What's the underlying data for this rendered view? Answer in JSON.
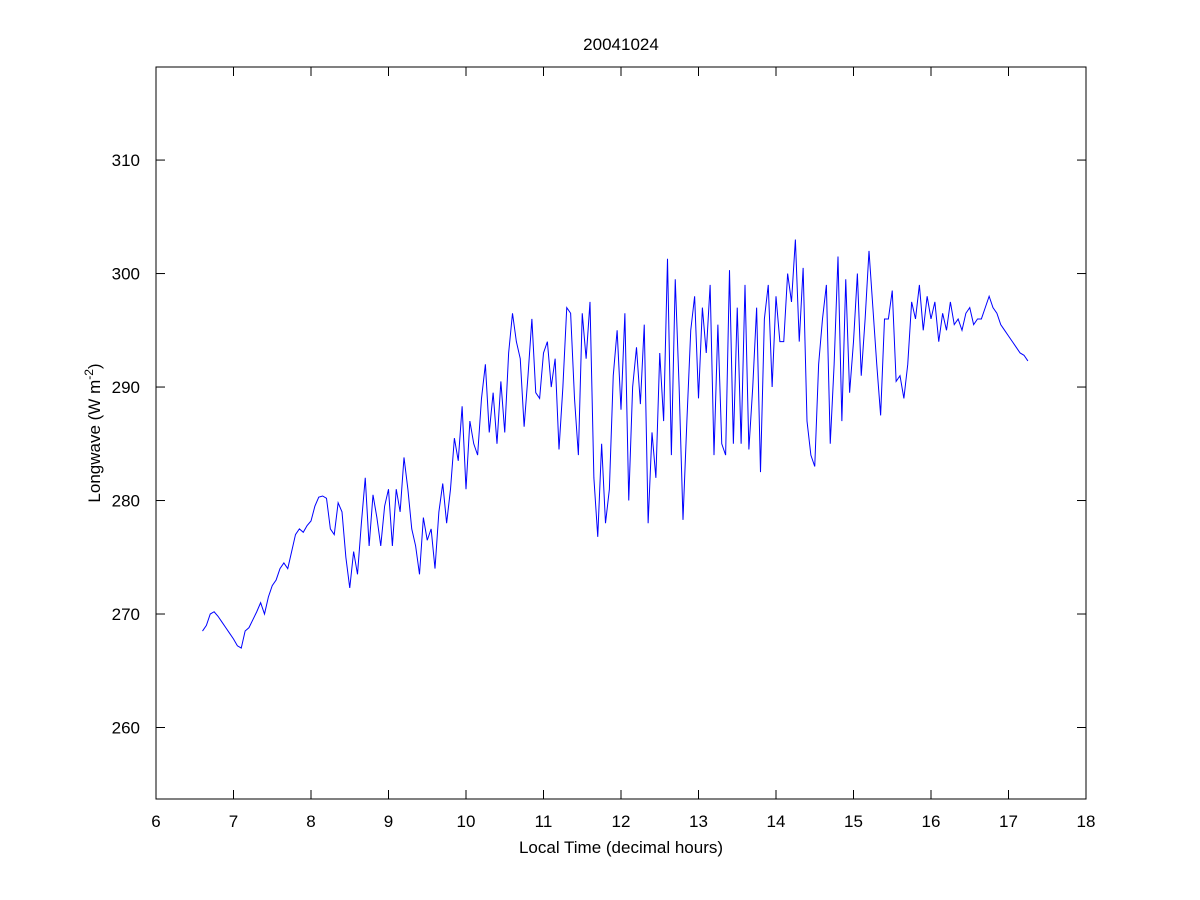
{
  "chart_data": {
    "type": "line",
    "title": "20041024",
    "xlabel": "Local Time (decimal hours)",
    "ylabel": {
      "text": "Longwave (W m",
      "superscript": "-2",
      "suffix": ")"
    },
    "color": "#0000ff",
    "xlim": [
      6,
      18
    ],
    "xticks": [
      6,
      7,
      8,
      9,
      10,
      11,
      12,
      13,
      14,
      15,
      16,
      17,
      18
    ],
    "ylim": [
      253.7,
      318.2
    ],
    "yticks": [
      260,
      270,
      280,
      290,
      300,
      310
    ],
    "x": [
      6.6,
      6.65,
      6.7,
      6.75,
      6.8,
      6.85,
      6.9,
      6.95,
      7.0,
      7.05,
      7.1,
      7.15,
      7.2,
      7.25,
      7.3,
      7.35,
      7.4,
      7.45,
      7.5,
      7.55,
      7.6,
      7.65,
      7.7,
      7.75,
      7.8,
      7.85,
      7.9,
      7.95,
      8.0,
      8.05,
      8.1,
      8.15,
      8.2,
      8.25,
      8.3,
      8.35,
      8.4,
      8.45,
      8.5,
      8.55,
      8.6,
      8.65,
      8.7,
      8.75,
      8.8,
      8.85,
      8.9,
      8.95,
      9.0,
      9.05,
      9.1,
      9.15,
      9.2,
      9.25,
      9.3,
      9.35,
      9.4,
      9.45,
      9.5,
      9.55,
      9.6,
      9.65,
      9.7,
      9.75,
      9.8,
      9.85,
      9.9,
      9.95,
      10.0,
      10.05,
      10.1,
      10.15,
      10.2,
      10.25,
      10.3,
      10.35,
      10.4,
      10.45,
      10.5,
      10.55,
      10.6,
      10.65,
      10.7,
      10.75,
      10.8,
      10.85,
      10.9,
      10.95,
      11.0,
      11.05,
      11.1,
      11.15,
      11.2,
      11.25,
      11.3,
      11.35,
      11.4,
      11.45,
      11.5,
      11.55,
      11.6,
      11.65,
      11.7,
      11.75,
      11.8,
      11.85,
      11.9,
      11.95,
      12.0,
      12.05,
      12.1,
      12.15,
      12.2,
      12.25,
      12.3,
      12.35,
      12.4,
      12.45,
      12.5,
      12.55,
      12.6,
      12.65,
      12.7,
      12.75,
      12.8,
      12.85,
      12.9,
      12.95,
      13.0,
      13.05,
      13.1,
      13.15,
      13.2,
      13.25,
      13.3,
      13.35,
      13.4,
      13.45,
      13.5,
      13.55,
      13.6,
      13.65,
      13.7,
      13.75,
      13.8,
      13.85,
      13.9,
      13.95,
      14.0,
      14.05,
      14.1,
      14.15,
      14.2,
      14.25,
      14.3,
      14.35,
      14.4,
      14.45,
      14.5,
      14.55,
      14.6,
      14.65,
      14.7,
      14.75,
      14.8,
      14.85,
      14.9,
      14.95,
      15.0,
      15.05,
      15.1,
      15.15,
      15.2,
      15.25,
      15.3,
      15.35,
      15.4,
      15.45,
      15.5,
      15.55,
      15.6,
      15.65,
      15.7,
      15.75,
      15.8,
      15.85,
      15.9,
      15.95,
      16.0,
      16.05,
      16.1,
      16.15,
      16.2,
      16.25,
      16.3,
      16.35,
      16.4,
      16.45,
      16.5,
      16.55,
      16.6,
      16.65,
      16.7,
      16.75,
      16.8,
      16.85,
      16.9,
      16.95,
      17.0,
      17.05,
      17.1,
      17.15,
      17.2,
      17.25
    ],
    "values": [
      268.5,
      269.0,
      270.0,
      270.2,
      269.8,
      269.3,
      268.8,
      268.3,
      267.8,
      267.2,
      267.0,
      268.5,
      268.8,
      269.5,
      270.2,
      271.0,
      270.0,
      271.5,
      272.5,
      273.0,
      274.0,
      274.5,
      274.0,
      275.5,
      277.0,
      277.5,
      277.2,
      277.8,
      278.2,
      279.5,
      280.3,
      280.4,
      280.2,
      277.5,
      277.0,
      279.8,
      279.0,
      275.0,
      272.3,
      275.5,
      273.5,
      278.0,
      282.0,
      276.0,
      280.5,
      278.5,
      276.0,
      279.5,
      281.0,
      276.0,
      281.0,
      279.0,
      283.8,
      281.0,
      277.5,
      276.0,
      273.5,
      278.5,
      276.5,
      277.5,
      274.0,
      279.0,
      281.5,
      278.0,
      281.0,
      285.5,
      283.5,
      288.3,
      281.0,
      287.0,
      285.0,
      284.0,
      289.0,
      292.0,
      286.0,
      289.5,
      285.0,
      290.5,
      286.0,
      293.0,
      296.5,
      294.0,
      292.5,
      286.5,
      291.0,
      296.0,
      289.5,
      289.0,
      293.0,
      294.0,
      290.0,
      292.5,
      284.5,
      290.0,
      297.0,
      296.5,
      289.0,
      284.0,
      296.5,
      292.5,
      297.5,
      282.0,
      276.8,
      285.0,
      278.0,
      281.0,
      291.0,
      295.0,
      288.0,
      296.5,
      280.0,
      290.0,
      293.5,
      288.5,
      295.5,
      278.0,
      286.0,
      282.0,
      293.0,
      287.0,
      301.3,
      284.0,
      299.5,
      290.0,
      278.3,
      287.0,
      295.0,
      298.0,
      289.0,
      297.0,
      293.0,
      299.0,
      284.0,
      295.5,
      285.0,
      284.0,
      300.3,
      285.0,
      297.0,
      285.0,
      299.0,
      284.5,
      290.0,
      297.0,
      282.5,
      296.0,
      299.0,
      290.0,
      298.0,
      294.0,
      294.0,
      300.0,
      297.5,
      303.0,
      294.0,
      300.5,
      287.0,
      284.0,
      283.0,
      292.0,
      296.0,
      299.0,
      285.0,
      292.0,
      301.5,
      287.0,
      299.5,
      289.5,
      294.0,
      300.0,
      291.0,
      296.0,
      302.0,
      297.0,
      292.0,
      287.5,
      296.0,
      296.0,
      298.5,
      290.5,
      291.0,
      289.0,
      292.0,
      297.5,
      296.0,
      299.0,
      295.0,
      298.0,
      296.0,
      297.5,
      294.0,
      296.5,
      295.0,
      297.5,
      295.5,
      296.0,
      295.0,
      296.5,
      297.0,
      295.5,
      296.0,
      296.0,
      297.0,
      298.0,
      297.0,
      296.5,
      295.5,
      295.0,
      294.5,
      294.0,
      293.5,
      293.0,
      292.8,
      292.3
    ]
  }
}
